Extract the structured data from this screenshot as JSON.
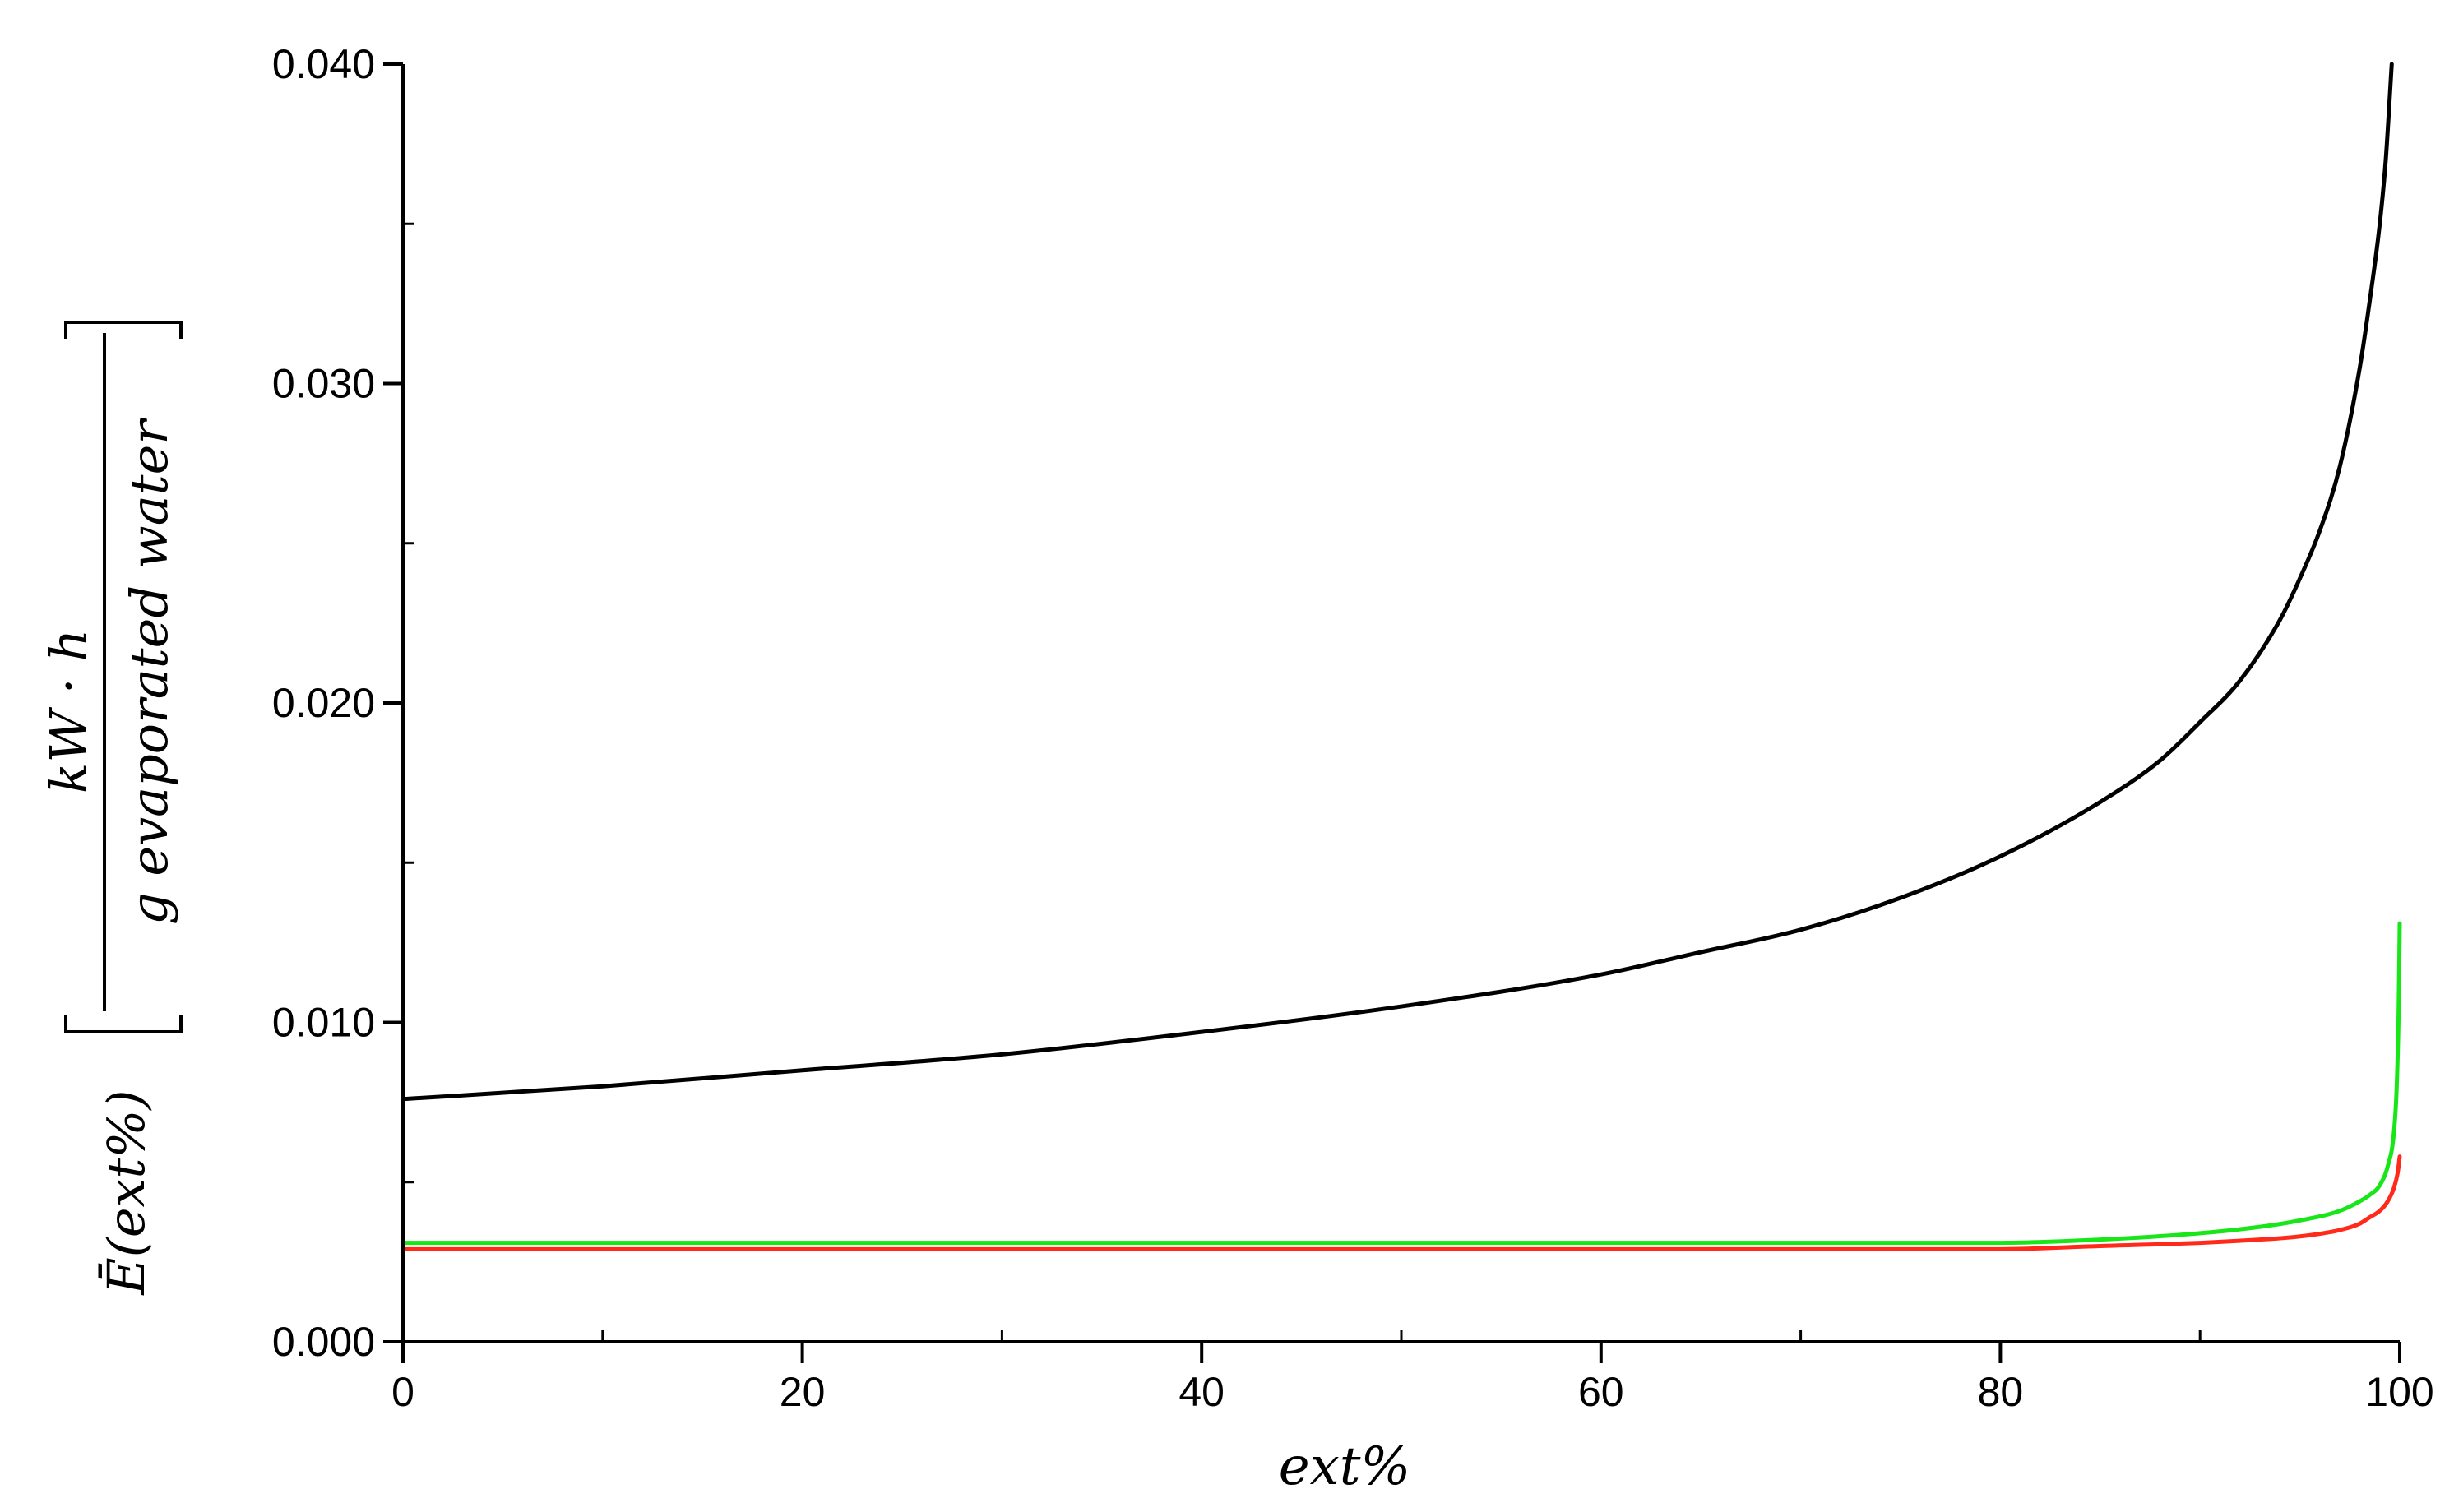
{
  "chart_data": {
    "type": "line",
    "title": "",
    "xlabel": "ext%",
    "ylabel": {
      "prefix": "Ē(ext%)",
      "numerator": "kW · h",
      "denominator": "g evaporated water"
    },
    "xlim": [
      0,
      100
    ],
    "ylim": [
      0,
      0.04
    ],
    "x_ticks": [
      0,
      20,
      40,
      60,
      80,
      100
    ],
    "x_tick_labels": [
      "0",
      "20",
      "40",
      "60",
      "80",
      "100"
    ],
    "y_ticks": [
      0,
      0.01,
      0.02,
      0.03,
      0.04
    ],
    "y_tick_labels": [
      "0.000",
      "0.010",
      "0.020",
      "0.030",
      "0.040"
    ],
    "x_minor_step": 10,
    "y_minor_step": 0.005,
    "grid": false,
    "legend": "none",
    "series": [
      {
        "color": "#000000",
        "x": [
          0,
          10,
          20,
          30,
          40,
          50,
          60,
          65,
          70,
          75,
          80,
          85,
          88,
          90,
          92,
          94,
          95,
          96,
          97,
          98,
          98.5,
          99,
          99.3,
          99.6
        ],
        "y": [
          0.0076,
          0.008,
          0.0085,
          0.009,
          0.0097,
          0.0105,
          0.0115,
          0.0122,
          0.0129,
          0.0139,
          0.0152,
          0.0169,
          0.0182,
          0.0194,
          0.0207,
          0.0226,
          0.0239,
          0.0254,
          0.0274,
          0.0305,
          0.0326,
          0.035,
          0.037,
          0.04
        ]
      },
      {
        "color": "#ff2a1a",
        "x": [
          0,
          20,
          40,
          60,
          70,
          80,
          85,
          90,
          93,
          95,
          97,
          98,
          98.5,
          99,
          99.4,
          99.7,
          99.9,
          100
        ],
        "y": [
          0.0029,
          0.0029,
          0.0029,
          0.0029,
          0.0029,
          0.0029,
          0.003,
          0.0031,
          0.0032,
          0.0033,
          0.0035,
          0.0037,
          0.0039,
          0.0041,
          0.0044,
          0.0048,
          0.0053,
          0.0058
        ]
      },
      {
        "color": "#19e619",
        "x": [
          0,
          20,
          40,
          60,
          70,
          80,
          85,
          90,
          93,
          95,
          97,
          98,
          98.5,
          99,
          99.4,
          99.7,
          99.85,
          99.95,
          100
        ],
        "y": [
          0.0031,
          0.0031,
          0.0031,
          0.0031,
          0.0031,
          0.0031,
          0.0032,
          0.0034,
          0.0036,
          0.0038,
          0.0041,
          0.0044,
          0.0046,
          0.0049,
          0.0055,
          0.0065,
          0.008,
          0.0105,
          0.0131
        ]
      }
    ]
  }
}
